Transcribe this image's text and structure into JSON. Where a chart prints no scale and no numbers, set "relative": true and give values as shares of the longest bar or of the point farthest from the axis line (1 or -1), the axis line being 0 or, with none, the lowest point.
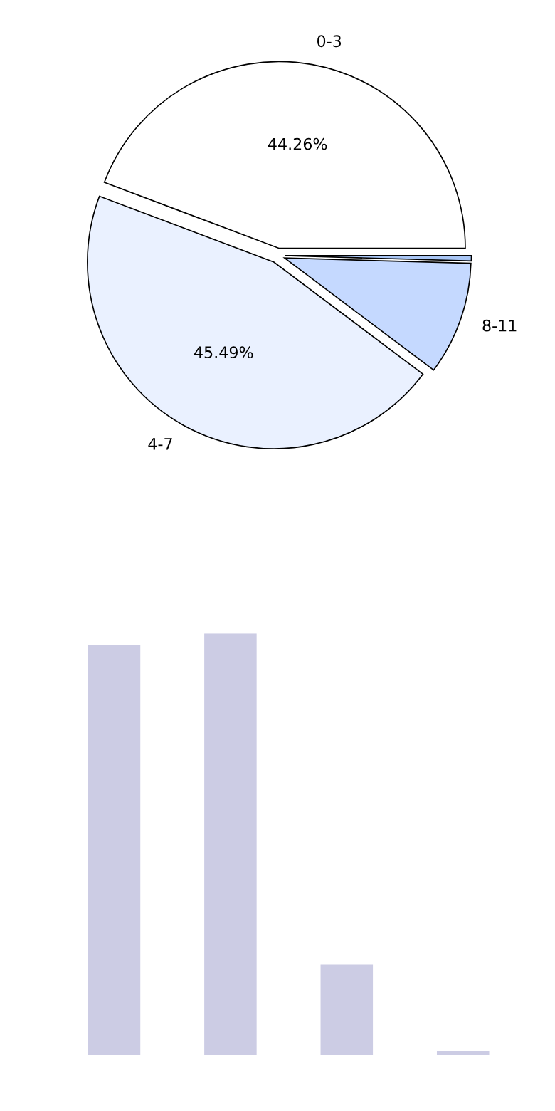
{
  "chart_data": [
    {
      "type": "pie",
      "categories": [
        "0-3",
        "4-7",
        "8-11",
        null
      ],
      "values": [
        44.26,
        45.49,
        9.8,
        0.45
      ],
      "colors": [
        "#ffffff",
        "#eaf1ff",
        "#c5d9ff",
        "#a9c6f5"
      ],
      "value_labels": [
        "44.26%",
        "45.49%",
        null,
        null
      ]
    },
    {
      "type": "bar",
      "relative": true,
      "categories": [
        null,
        null,
        null,
        null
      ],
      "values": [
        0.973,
        1,
        0.215,
        0.01
      ],
      "color": "#ccccE4"
    }
  ]
}
